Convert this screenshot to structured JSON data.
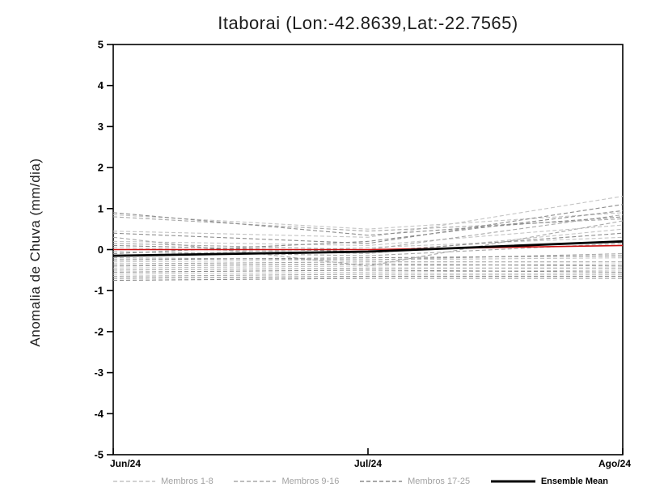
{
  "title": "Itaborai (Lon:-42.8639,Lat:-22.7565)",
  "ylabel": "Anomalia de Chuva (mm/dia)",
  "legend": {
    "items": [
      {
        "label": "Membros 1-8",
        "color": "#c4c4c4",
        "style": "dashed"
      },
      {
        "label": "Membros 9-16",
        "color": "#a8a8a8",
        "style": "dashed"
      },
      {
        "label": "Membros 17-25",
        "color": "#8c8c8c",
        "style": "dashed"
      },
      {
        "label": "Ensemble Mean",
        "color": "#000000",
        "style": "solid"
      }
    ]
  },
  "chart_data": {
    "type": "line",
    "title": "Itaborai (Lon:-42.8639,Lat:-22.7565)",
    "xlabel": "",
    "ylabel": "Anomalia de Chuva (mm/dia)",
    "x": [
      "Jun/24",
      "Jul/24",
      "Ago/24"
    ],
    "ylim": [
      -5,
      5
    ],
    "y_ticks": [
      -5,
      -4,
      -3,
      -2,
      -1,
      0,
      1,
      2,
      3,
      4,
      5
    ],
    "grid": false,
    "legend_position": "bottom",
    "groups": [
      {
        "name": "Membros 1-8",
        "color": "#c4c4c4",
        "style": "dashed",
        "members": [
          [
            0.85,
            0.5,
            0.9
          ],
          [
            0.2,
            0.1,
            0.6
          ],
          [
            0.45,
            0.3,
            1.3
          ],
          [
            -0.3,
            -0.25,
            -0.2
          ],
          [
            -0.45,
            -0.4,
            -0.35
          ],
          [
            0.05,
            -0.1,
            0.5
          ],
          [
            -0.6,
            -0.55,
            -0.5
          ],
          [
            -0.15,
            0.05,
            0.3
          ]
        ]
      },
      {
        "name": "Membros 9-16",
        "color": "#a8a8a8",
        "style": "dashed",
        "members": [
          [
            0.8,
            0.45,
            0.75
          ],
          [
            -0.2,
            -0.25,
            -0.1
          ],
          [
            -0.35,
            -0.3,
            -0.3
          ],
          [
            -0.5,
            -0.45,
            -0.45
          ],
          [
            0.15,
            0.0,
            0.85
          ],
          [
            -0.65,
            -0.6,
            -0.6
          ],
          [
            -0.05,
            -0.15,
            0.15
          ],
          [
            0.3,
            -0.4,
            0.7
          ]
        ]
      },
      {
        "name": "Membros 17-25",
        "color": "#8c8c8c",
        "style": "dashed",
        "members": [
          [
            0.9,
            0.35,
            0.8
          ],
          [
            -0.25,
            -0.2,
            -0.15
          ],
          [
            -0.4,
            -0.35,
            -0.4
          ],
          [
            -0.55,
            -0.5,
            -0.55
          ],
          [
            -0.7,
            -0.65,
            -0.65
          ],
          [
            -0.1,
            0.2,
            0.95
          ],
          [
            0.1,
            -0.05,
            0.4
          ],
          [
            -0.75,
            -0.7,
            -0.7
          ],
          [
            0.4,
            0.15,
            1.1
          ]
        ]
      }
    ],
    "reference_line": {
      "name": "zero-reference",
      "color": "#cc1111",
      "values": [
        0.0,
        0.0,
        0.1
      ]
    },
    "ensemble_mean": {
      "name": "Ensemble Mean",
      "color": "#000000",
      "values": [
        -0.15,
        -0.05,
        0.2
      ]
    }
  }
}
